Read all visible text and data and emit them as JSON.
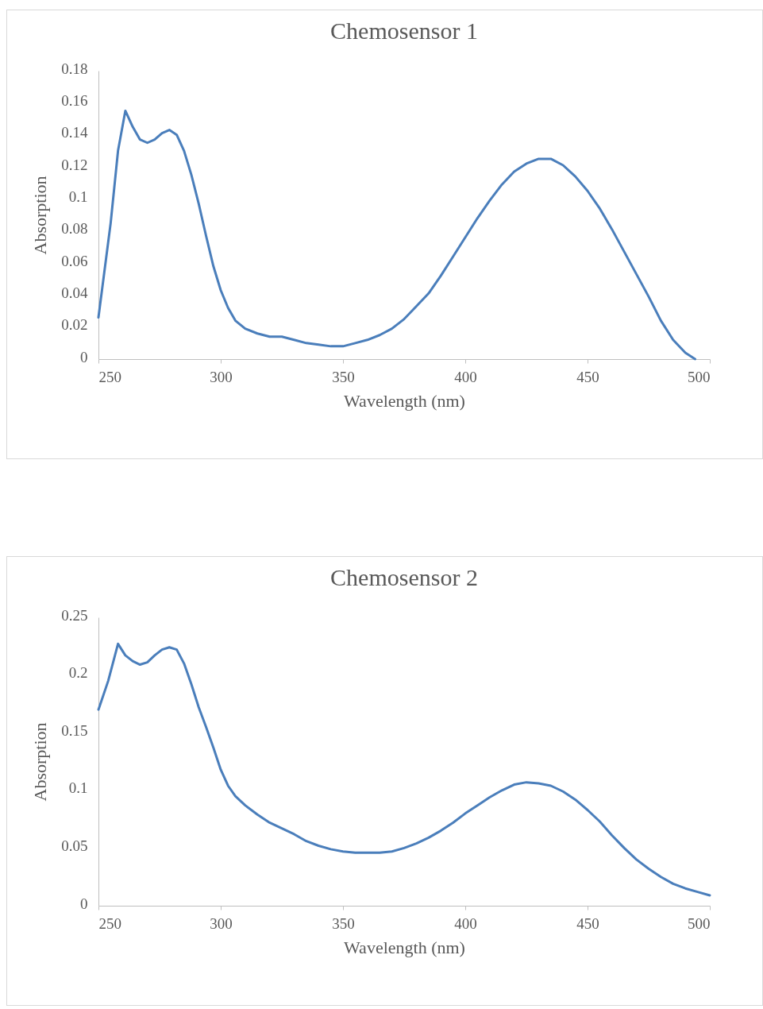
{
  "chart_data": [
    {
      "type": "line",
      "title": "Chemosensor 1",
      "xlabel": "Wavelength (nm)",
      "ylabel": "Absorption",
      "color": "#4a7ebb",
      "xlim": [
        250,
        500
      ],
      "ylim": [
        0,
        0.18
      ],
      "xticks": [
        250,
        300,
        350,
        400,
        450,
        500
      ],
      "yticks": [
        0,
        0.02,
        0.04,
        0.06,
        0.08,
        0.1,
        0.12,
        0.14,
        0.16,
        0.18
      ],
      "x": [
        250,
        255,
        258,
        261,
        264,
        267,
        270,
        273,
        276,
        279,
        282,
        285,
        288,
        291,
        294,
        297,
        300,
        303,
        306,
        310,
        315,
        320,
        325,
        330,
        335,
        340,
        345,
        350,
        355,
        360,
        365,
        370,
        375,
        380,
        385,
        390,
        395,
        400,
        405,
        410,
        415,
        420,
        425,
        430,
        435,
        440,
        445,
        450,
        455,
        460,
        465,
        470,
        475,
        480,
        485,
        490,
        494
      ],
      "values": [
        0.026,
        0.085,
        0.13,
        0.155,
        0.145,
        0.137,
        0.135,
        0.137,
        0.141,
        0.143,
        0.14,
        0.13,
        0.115,
        0.097,
        0.077,
        0.058,
        0.043,
        0.032,
        0.024,
        0.019,
        0.016,
        0.014,
        0.014,
        0.012,
        0.01,
        0.009,
        0.008,
        0.008,
        0.01,
        0.012,
        0.015,
        0.019,
        0.025,
        0.033,
        0.041,
        0.052,
        0.064,
        0.076,
        0.088,
        0.099,
        0.109,
        0.117,
        0.122,
        0.125,
        0.125,
        0.121,
        0.114,
        0.105,
        0.094,
        0.081,
        0.067,
        0.053,
        0.039,
        0.024,
        0.012,
        0.004,
        0
      ]
    },
    {
      "type": "line",
      "title": "Chemosensor 2",
      "xlabel": "Wavelength (nm)",
      "ylabel": "Absorption",
      "color": "#4a7ebb",
      "xlim": [
        250,
        500
      ],
      "ylim": [
        0,
        0.25
      ],
      "xticks": [
        250,
        300,
        350,
        400,
        450,
        500
      ],
      "yticks": [
        0,
        0.05,
        0.1,
        0.15,
        0.2,
        0.25
      ],
      "x": [
        250,
        254,
        258,
        261,
        264,
        267,
        270,
        273,
        276,
        279,
        282,
        285,
        288,
        291,
        294,
        297,
        300,
        303,
        306,
        310,
        315,
        320,
        325,
        330,
        335,
        340,
        345,
        350,
        355,
        360,
        365,
        370,
        375,
        380,
        385,
        390,
        395,
        400,
        405,
        410,
        415,
        420,
        425,
        430,
        435,
        440,
        445,
        450,
        455,
        460,
        465,
        470,
        475,
        480,
        485,
        490,
        495,
        500
      ],
      "values": [
        0.17,
        0.195,
        0.227,
        0.217,
        0.212,
        0.209,
        0.211,
        0.217,
        0.222,
        0.224,
        0.222,
        0.21,
        0.192,
        0.172,
        0.155,
        0.137,
        0.118,
        0.104,
        0.095,
        0.087,
        0.079,
        0.072,
        0.067,
        0.062,
        0.056,
        0.052,
        0.049,
        0.047,
        0.046,
        0.046,
        0.046,
        0.047,
        0.05,
        0.054,
        0.059,
        0.065,
        0.072,
        0.08,
        0.087,
        0.094,
        0.1,
        0.105,
        0.107,
        0.106,
        0.104,
        0.099,
        0.092,
        0.083,
        0.073,
        0.061,
        0.05,
        0.04,
        0.032,
        0.025,
        0.019,
        0.015,
        0.012,
        0.009
      ]
    }
  ]
}
